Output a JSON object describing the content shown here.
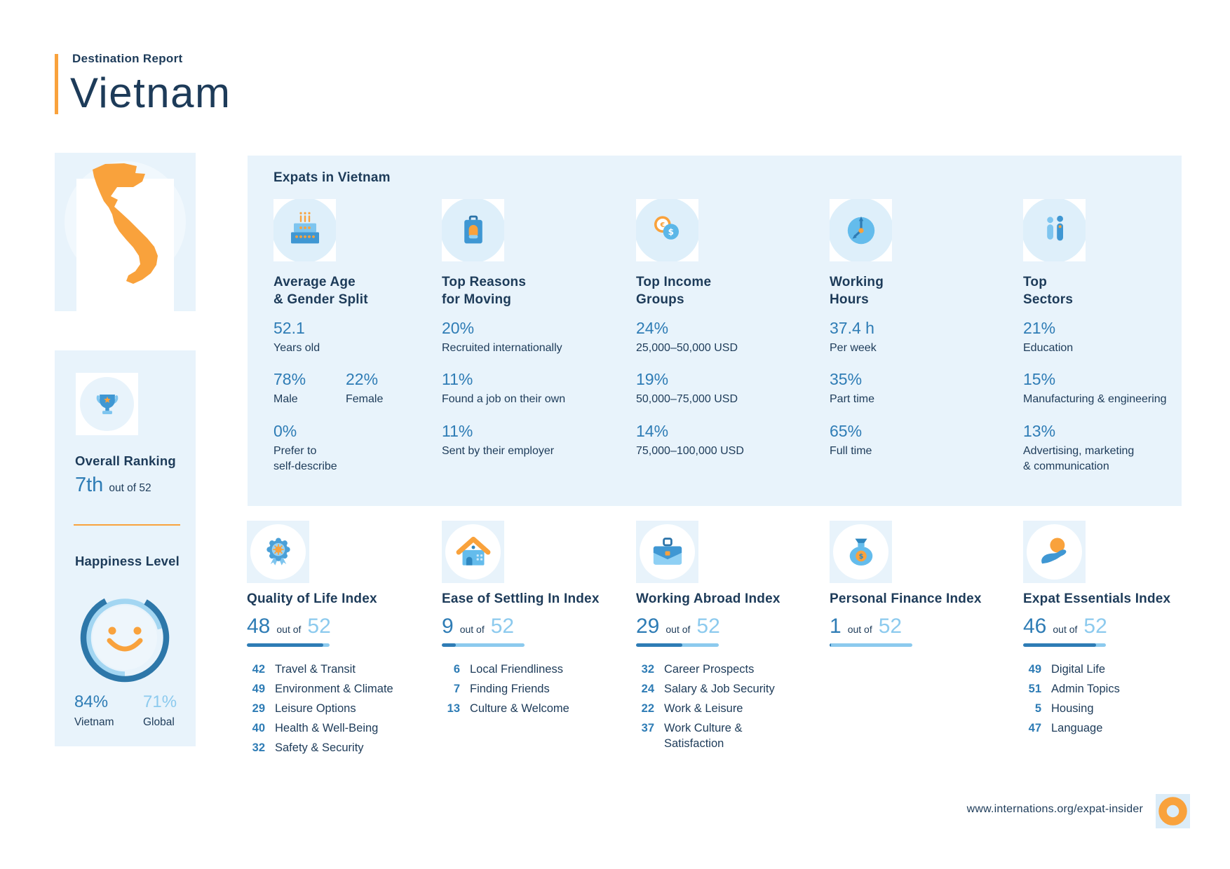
{
  "header": {
    "eyebrow": "Destination Report",
    "title": "Vietnam"
  },
  "labels": {
    "out_of": "out of"
  },
  "colors": {
    "navy": "#1d3b59",
    "blue": "#2e7cb5",
    "light_blue": "#8ccaee",
    "orange": "#f9a23c",
    "panel_bg": "#e8f3fb"
  },
  "sidebar": {
    "ranking": {
      "title": "Overall Ranking",
      "value": "7th",
      "suffix": "out of 52"
    },
    "happiness": {
      "title": "Happiness Level",
      "local": {
        "value": "84%",
        "label": "Vietnam"
      },
      "global": {
        "value": "71%",
        "label": "Global"
      }
    }
  },
  "expats_panel": {
    "title": "Expats in Vietnam",
    "columns": [
      {
        "icon": "birthday-cake-icon",
        "title": "Average Age\n& Gender Split",
        "stats": [
          {
            "value": "52.1",
            "label": "Years old"
          },
          {
            "value": "78%",
            "label": "Male"
          },
          {
            "value": "22%",
            "label": "Female"
          },
          {
            "value": "0%",
            "label": "Prefer to\nself-describe"
          }
        ]
      },
      {
        "icon": "suitcase-icon",
        "title": "Top Reasons\nfor Moving",
        "stats": [
          {
            "value": "20%",
            "label": "Recruited internationally"
          },
          {
            "value": "11%",
            "label": "Found a job on their own"
          },
          {
            "value": "11%",
            "label": "Sent by their employer"
          }
        ]
      },
      {
        "icon": "coins-icon",
        "title": "Top Income\nGroups",
        "stats": [
          {
            "value": "24%",
            "label": "25,000–50,000 USD"
          },
          {
            "value": "19%",
            "label": "50,000–75,000 USD"
          },
          {
            "value": "14%",
            "label": "75,000–100,000 USD"
          }
        ]
      },
      {
        "icon": "clock-icon",
        "title": "Working\nHours",
        "stats": [
          {
            "value": "37.4 h",
            "label": "Per week"
          },
          {
            "value": "35%",
            "label": "Part time"
          },
          {
            "value": "65%",
            "label": "Full time"
          }
        ]
      },
      {
        "icon": "people-icon",
        "title": "Top\nSectors",
        "stats": [
          {
            "value": "21%",
            "label": "Education"
          },
          {
            "value": "15%",
            "label": "Manufacturing & engineering"
          },
          {
            "value": "13%",
            "label": "Advertising, marketing\n& communication"
          }
        ]
      }
    ]
  },
  "indices": [
    {
      "icon": "rosette-icon",
      "title": "Quality of Life Index",
      "rank": 48,
      "total": 52,
      "items": [
        {
          "rank": 42,
          "label": "Travel & Transit"
        },
        {
          "rank": 49,
          "label": "Environment & Climate"
        },
        {
          "rank": 29,
          "label": "Leisure Options"
        },
        {
          "rank": 40,
          "label": "Health & Well-Being"
        },
        {
          "rank": 32,
          "label": "Safety & Security"
        }
      ]
    },
    {
      "icon": "house-icon",
      "title": "Ease of Settling In Index",
      "rank": 9,
      "total": 52,
      "items": [
        {
          "rank": 6,
          "label": "Local Friendliness"
        },
        {
          "rank": 7,
          "label": "Finding Friends"
        },
        {
          "rank": 13,
          "label": "Culture & Welcome"
        }
      ]
    },
    {
      "icon": "briefcase-icon",
      "title": "Working Abroad Index",
      "rank": 29,
      "total": 52,
      "items": [
        {
          "rank": 32,
          "label": "Career Prospects"
        },
        {
          "rank": 24,
          "label": "Salary & Job Security"
        },
        {
          "rank": 22,
          "label": "Work & Leisure"
        },
        {
          "rank": 37,
          "label": "Work Culture &\nSatisfaction"
        }
      ]
    },
    {
      "icon": "money-bag-icon",
      "title": "Personal Finance Index",
      "rank": 1,
      "total": 52,
      "items": []
    },
    {
      "icon": "hand-coin-icon",
      "title": "Expat Essentials Index",
      "rank": 46,
      "total": 52,
      "items": [
        {
          "rank": 49,
          "label": "Digital Life"
        },
        {
          "rank": 51,
          "label": "Admin Topics"
        },
        {
          "rank": 5,
          "label": "Housing"
        },
        {
          "rank": 47,
          "label": "Language"
        }
      ]
    }
  ],
  "footer": {
    "url": "www.internations.org/expat-insider"
  }
}
